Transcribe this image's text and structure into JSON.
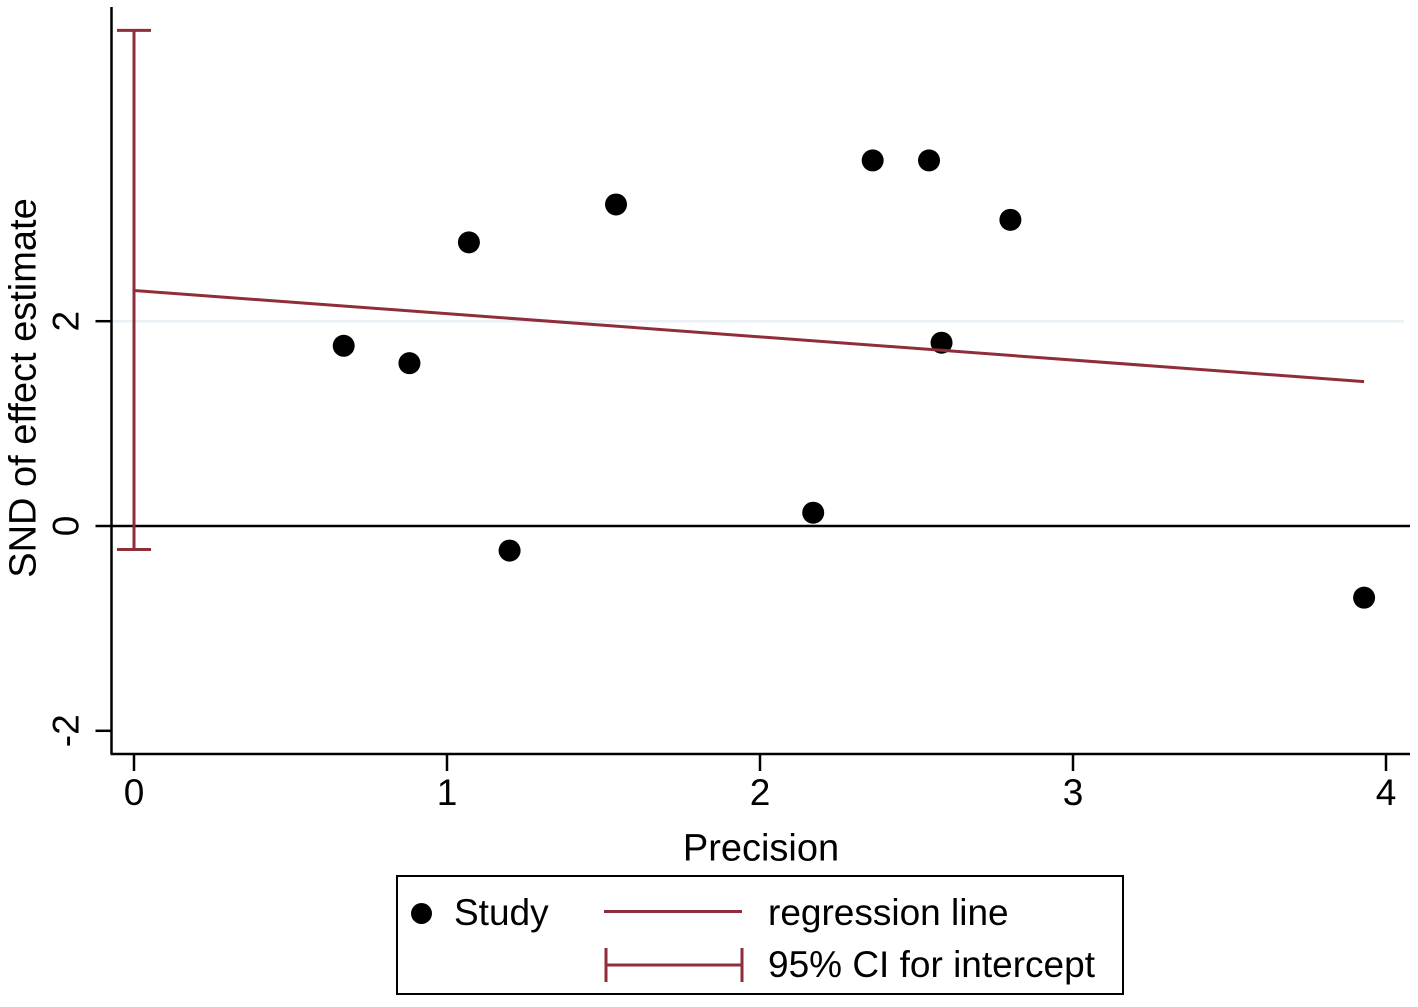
{
  "chart_data": {
    "type": "scatter",
    "title": "",
    "xlabel": "Precision",
    "ylabel": "SND of effect estimate",
    "xlim": [
      0,
      4.08
    ],
    "ylim": [
      -2.25,
      5.05
    ],
    "xticks": [
      0,
      1,
      2,
      3,
      4
    ],
    "yticks": [
      -2,
      0,
      2
    ],
    "gridlines_y": [
      2
    ],
    "zero_line_y": 0,
    "grid": "horizontal-at-2-only",
    "legend_position": "bottom",
    "series": [
      {
        "name": "Study",
        "type": "scatter",
        "color": "#000000",
        "points": [
          [
            0.67,
            1.76
          ],
          [
            0.88,
            1.59
          ],
          [
            1.07,
            2.77
          ],
          [
            1.2,
            -0.24
          ],
          [
            1.54,
            3.14
          ],
          [
            2.17,
            0.13
          ],
          [
            2.36,
            3.57
          ],
          [
            2.54,
            3.57
          ],
          [
            2.58,
            1.79
          ],
          [
            2.8,
            2.99
          ],
          [
            3.93,
            -0.7
          ]
        ]
      },
      {
        "name": "regression line",
        "type": "line",
        "color": "#8f2d38",
        "x": [
          0,
          3.93
        ],
        "y": [
          2.3,
          1.41
        ],
        "intercept": 2.3,
        "slope": -0.226
      },
      {
        "name": "95% CI for intercept",
        "type": "interval",
        "color": "#8f2d38",
        "x": 0,
        "low": -0.23,
        "high": 4.84
      }
    ],
    "legend": {
      "entries": [
        {
          "marker": "dot",
          "label": "Study"
        },
        {
          "marker": "line",
          "label": "regression line"
        },
        {
          "marker": "interval",
          "label": "95% CI for intercept"
        }
      ]
    },
    "colors": {
      "accent_maroon": "#8f2d38",
      "gridline": "#e9f1f4",
      "axis": "#000000",
      "background": "#ffffff"
    }
  }
}
